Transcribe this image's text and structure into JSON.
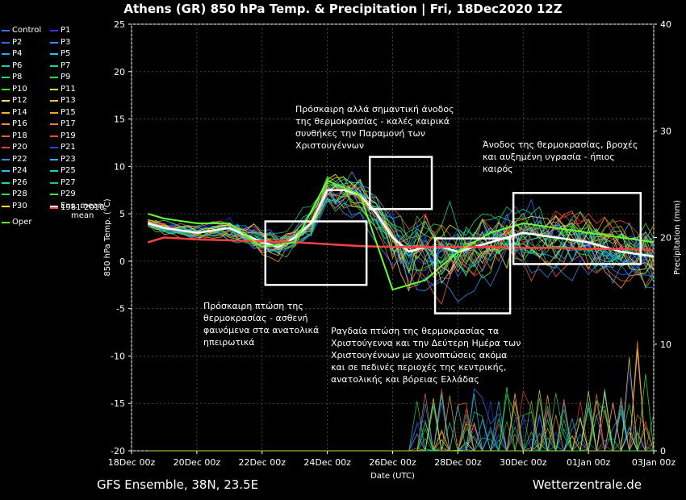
{
  "title": "Athens  (GR)  850 hPa Temp. & Precipitation | Fri, 18Dec2020 12Z",
  "footer_left": "GFS Ensemble, 38N, 23.5E",
  "footer_right": "Wetterzentrale.de",
  "legend": [
    {
      "label": "Control",
      "color": "#3f6fff"
    },
    {
      "label": "P1",
      "color": "#3030ff"
    },
    {
      "label": "P2",
      "color": "#4060ff"
    },
    {
      "label": "P3",
      "color": "#3a8cff"
    },
    {
      "label": "P4",
      "color": "#22aaff"
    },
    {
      "label": "P5",
      "color": "#20c8e0"
    },
    {
      "label": "P6",
      "color": "#20d0b0"
    },
    {
      "label": "P7",
      "color": "#20d890"
    },
    {
      "label": "P8",
      "color": "#20e070"
    },
    {
      "label": "P9",
      "color": "#30e040"
    },
    {
      "label": "P10",
      "color": "#40ff20"
    },
    {
      "label": "P11",
      "color": "#f0ff40"
    },
    {
      "label": "P12",
      "color": "#ffe060"
    },
    {
      "label": "P13",
      "color": "#ffc040"
    },
    {
      "label": "P14",
      "color": "#ffb030"
    },
    {
      "label": "P15",
      "color": "#ffa020"
    },
    {
      "label": "P16",
      "color": "#ff9050"
    },
    {
      "label": "P17",
      "color": "#ff7060"
    },
    {
      "label": "P18",
      "color": "#ff6040"
    },
    {
      "label": "P19",
      "color": "#ff5030"
    },
    {
      "label": "P20",
      "color": "#ff4040"
    },
    {
      "label": "P21",
      "color": "#3040ff"
    },
    {
      "label": "P22",
      "color": "#3090ff"
    },
    {
      "label": "P23",
      "color": "#30b0ff"
    },
    {
      "label": "P24",
      "color": "#30c0ff"
    },
    {
      "label": "P25",
      "color": "#20d0c0"
    },
    {
      "label": "P26",
      "color": "#20e090"
    },
    {
      "label": "P27",
      "color": "#20c870"
    },
    {
      "label": "P28",
      "color": "#30e050"
    },
    {
      "label": "P29",
      "color": "#40ff30"
    },
    {
      "label": "P30",
      "color": "#ffe040"
    },
    {
      "label": "Ens. mean",
      "color": "#ffffff"
    },
    {
      "label": "Oper",
      "color": "#66ff33"
    },
    {
      "label": "1981-2010\nmean",
      "color": "#ff4040"
    }
  ],
  "annotations": [
    {
      "text": "Πρόσκαιρη αλλά σημαντική άνοδος\nτης θερμοκρασίας - καλές καιρικά\nσυνθήκες την Παραμονή των\nΧριστουγέννων"
    },
    {
      "text": "Άνοδος της θερμοκρασίας, βροχές\nκαι αυξημένη υγρασία - ήπιος\nκαιρός"
    },
    {
      "text": "Πρόσκαιρη πτώση της\nθερμοκρασίας - ασθενή\nφαινόμενα στα ανατολικά\nηπειρωτικά"
    },
    {
      "text": "Ραγδαία  πτώση της θερμοκρασίας τα\nΧριστούγεννα και την Δεύτερη Ημέρα των\nΧριστουγέννων με χιονοπτώσεις ακόμα\nκαι σε πεδινές περιοχές της κεντρικής,\nανατολικής και βόρειας Ελλάδας"
    }
  ],
  "chart_data": {
    "type": "line",
    "xlabel": "Date (UTC)",
    "ylabel": "850 hPa Temp. (°C)",
    "y2label": "Precipitation (mm)",
    "ylim": [
      -20,
      25
    ],
    "y2lim": [
      0,
      40
    ],
    "yticks": [
      -20,
      -15,
      -10,
      -5,
      0,
      5,
      10,
      15,
      20,
      25
    ],
    "y2ticks": [
      0,
      10,
      20,
      30,
      40
    ],
    "xticks": [
      "18Dec 00z",
      "20Dec 00z",
      "22Dec 00z",
      "24Dec 00z",
      "26Dec 00z",
      "28Dec 00z",
      "30Dec 00z",
      "01Jan 00z",
      "03Jan 00z"
    ],
    "xlim_days": [
      0,
      16
    ],
    "grid": true,
    "series": [
      {
        "name": "Ens. mean",
        "x": [
          0.5,
          1,
          2,
          3,
          4,
          4.5,
          5,
          5.5,
          6,
          6.5,
          7,
          7.5,
          8,
          8.5,
          9,
          9.5,
          10,
          10.5,
          11,
          12,
          13,
          14,
          15,
          16
        ],
        "values": [
          4,
          3.5,
          3,
          3.5,
          2,
          1.5,
          2.5,
          4,
          7.5,
          7.5,
          7,
          5,
          2.5,
          1,
          1.5,
          1.5,
          1,
          1.5,
          2,
          3,
          2.5,
          2,
          1,
          0.5
        ]
      },
      {
        "name": "1981-2010\nmean",
        "x": [
          0.5,
          1,
          2,
          3,
          4,
          5,
          6,
          7,
          8,
          9,
          10,
          11,
          12,
          13,
          14,
          15,
          16
        ],
        "values": [
          2,
          2.5,
          2.3,
          2.2,
          2.1,
          2,
          1.8,
          1.6,
          1.5,
          1.5,
          1.5,
          1.5,
          1.4,
          1.4,
          1.3,
          1.3,
          1.2
        ]
      },
      {
        "name": "Oper",
        "x": [
          0.5,
          1,
          2,
          3,
          4,
          5,
          6,
          7,
          8,
          9,
          10,
          11,
          12,
          13,
          14,
          15,
          16
        ],
        "values": [
          5,
          4.5,
          4,
          4,
          1.5,
          2,
          8.5,
          7,
          -3,
          -2,
          1,
          3,
          4,
          3.5,
          3,
          2.5,
          2
        ]
      }
    ]
  }
}
